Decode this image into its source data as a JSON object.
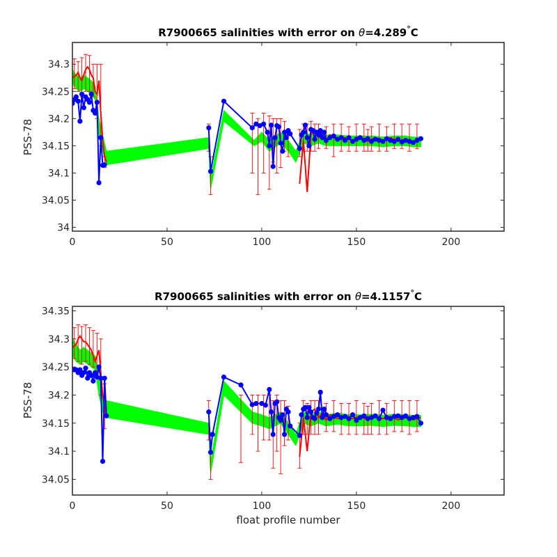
{
  "colors": {
    "background": "#ffffff",
    "axes": "#262626",
    "error_band": "#00ff00",
    "mapped_salinity": "#ff0000",
    "float_salinity": "#0000ff"
  },
  "chart_data": [
    {
      "type": "line",
      "title_prefix": "R7900665 salinities with error on ",
      "title_theta": "θ",
      "title_value": "=4.289",
      "title_degree": "°",
      "title_unit": "C",
      "xlabel": "",
      "ylabel": "PSS-78",
      "xlim": [
        0,
        228
      ],
      "ylim": [
        33.993,
        34.34
      ],
      "xticks": [
        0,
        50,
        100,
        150,
        200
      ],
      "yticks": [
        34,
        34.05,
        34.1,
        34.15,
        34.2,
        34.25,
        34.3
      ],
      "ytick_labels": [
        "34",
        "34.05",
        "34.1",
        "34.15",
        "34.2",
        "34.25",
        "34.3"
      ],
      "grid": false,
      "series": [
        {
          "role": "error-band",
          "color": "#00ff00",
          "x": [
            0,
            2,
            4,
            6,
            8,
            10,
            12,
            14,
            16,
            18,
            72,
            73,
            80,
            96,
            100,
            104,
            110,
            114,
            118,
            122,
            126,
            130,
            134,
            140,
            146,
            152,
            158,
            164,
            170,
            176,
            180,
            184
          ],
          "upper": [
            34.29,
            34.28,
            34.275,
            34.28,
            34.275,
            34.27,
            34.26,
            34.2,
            34.17,
            34.14,
            34.165,
            34.09,
            34.215,
            34.16,
            34.175,
            34.16,
            34.175,
            34.16,
            34.14,
            34.175,
            34.17,
            34.175,
            34.17,
            34.17,
            34.168,
            34.168,
            34.168,
            34.166,
            34.168,
            34.168,
            34.166,
            34.166
          ],
          "lower": [
            34.265,
            34.255,
            34.25,
            34.255,
            34.25,
            34.245,
            34.235,
            34.17,
            34.14,
            34.115,
            34.145,
            34.07,
            34.195,
            34.15,
            34.158,
            34.14,
            34.155,
            34.14,
            34.12,
            34.155,
            34.15,
            34.155,
            34.15,
            34.15,
            34.15,
            34.15,
            34.15,
            34.148,
            34.15,
            34.15,
            34.148,
            34.148
          ]
        },
        {
          "role": "mapped-salinity",
          "color": "#ff0000",
          "x": [
            0,
            2,
            3,
            4,
            5,
            6,
            7,
            8,
            9,
            10,
            11,
            12,
            13,
            14,
            15,
            16,
            17,
            18,
            120,
            122,
            124,
            126,
            128,
            130,
            132,
            134,
            136,
            140,
            144,
            148,
            152,
            156,
            160,
            164,
            168,
            172,
            176,
            180,
            184
          ],
          "values": [
            34.275,
            34.28,
            34.285,
            34.275,
            34.27,
            34.28,
            34.29,
            34.295,
            34.29,
            34.28,
            34.275,
            34.25,
            34.245,
            34.27,
            34.21,
            34.16,
            34.13,
            34.12,
            34.08,
            34.16,
            34.065,
            34.17,
            34.18,
            34.165,
            34.17,
            34.155,
            34.17,
            34.16,
            34.165,
            34.16,
            34.165,
            34.158,
            34.165,
            34.16,
            34.165,
            34.158,
            34.162,
            34.158,
            34.162
          ]
        },
        {
          "role": "float-salinity",
          "color": "#0000ff",
          "x": [
            0,
            1,
            2,
            3,
            4,
            5,
            6,
            7,
            8,
            9,
            10,
            11,
            12,
            13,
            14,
            15,
            16,
            17,
            72,
            73,
            80,
            95,
            97,
            99,
            101,
            103,
            104,
            105,
            106,
            107,
            108,
            109,
            110,
            111,
            112,
            113,
            114,
            115,
            120,
            121,
            122,
            123,
            124,
            125,
            126,
            127,
            128,
            129,
            130,
            131,
            132,
            133,
            134,
            136,
            138,
            140,
            142,
            144,
            146,
            148,
            150,
            152,
            154,
            156,
            158,
            160,
            162,
            164,
            166,
            168,
            170,
            172,
            174,
            176,
            178,
            180,
            182,
            184
          ],
          "values": [
            34.228,
            34.235,
            34.24,
            34.232,
            34.195,
            34.245,
            34.22,
            34.24,
            34.235,
            34.23,
            34.245,
            34.215,
            34.21,
            34.23,
            34.082,
            34.165,
            34.114,
            34.115,
            34.183,
            34.103,
            34.232,
            34.183,
            34.19,
            34.187,
            34.19,
            34.175,
            34.15,
            34.188,
            34.112,
            34.165,
            34.187,
            34.185,
            34.155,
            34.14,
            34.175,
            34.165,
            34.178,
            34.172,
            34.145,
            34.17,
            34.175,
            34.188,
            34.165,
            34.15,
            34.18,
            34.178,
            34.162,
            34.175,
            34.17,
            34.178,
            34.165,
            34.175,
            34.16,
            34.165,
            34.168,
            34.162,
            34.165,
            34.16,
            34.165,
            34.158,
            34.162,
            34.165,
            34.16,
            34.163,
            34.158,
            34.162,
            34.16,
            34.158,
            34.163,
            34.16,
            34.158,
            34.162,
            34.157,
            34.16,
            34.158,
            34.156,
            34.16,
            34.163
          ]
        },
        {
          "role": "error-bars",
          "color": "#ff0000",
          "x": [
            1,
            3,
            5,
            7,
            9,
            11,
            13,
            15,
            17,
            72,
            73,
            95,
            98,
            101,
            104,
            106,
            108,
            110,
            112,
            114,
            120,
            122,
            124,
            126,
            128,
            130,
            134,
            138,
            142,
            146,
            150,
            154,
            156,
            158,
            162,
            166,
            170,
            174,
            178,
            182
          ],
          "high": [
            34.31,
            34.305,
            34.312,
            34.318,
            34.316,
            34.3,
            34.3,
            34.3,
            34.13,
            34.19,
            34.13,
            34.21,
            34.2,
            34.21,
            34.205,
            34.2,
            34.2,
            34.2,
            34.195,
            34.18,
            34.18,
            34.19,
            34.19,
            34.195,
            34.19,
            34.19,
            34.185,
            34.19,
            34.19,
            34.185,
            34.19,
            34.19,
            34.18,
            34.185,
            34.19,
            34.185,
            34.19,
            34.19,
            34.19,
            34.19
          ],
          "low": [
            34.255,
            34.25,
            34.24,
            34.25,
            34.25,
            34.24,
            34.2,
            34.15,
            34.11,
            34.14,
            34.06,
            34.1,
            34.06,
            34.1,
            34.07,
            34.12,
            34.1,
            34.11,
            34.14,
            34.13,
            34.13,
            34.14,
            34.14,
            34.14,
            34.14,
            34.145,
            34.145,
            34.13,
            34.14,
            34.14,
            34.14,
            34.14,
            34.14,
            34.14,
            34.14,
            34.14,
            34.145,
            34.145,
            34.14,
            34.145
          ]
        }
      ]
    },
    {
      "type": "line",
      "title_prefix": "R7900665 salinities with error on ",
      "title_theta": "θ",
      "title_value": "=4.1157",
      "title_degree": "°",
      "title_unit": "C",
      "xlabel": "float profile number",
      "ylabel": "PSS-78",
      "xlim": [
        0,
        228
      ],
      "ylim": [
        34.022,
        34.358
      ],
      "xticks": [
        0,
        50,
        100,
        150,
        200
      ],
      "yticks": [
        34.05,
        34.1,
        34.15,
        34.2,
        34.25,
        34.3,
        34.35
      ],
      "ytick_labels": [
        "34.05",
        "34.1",
        "34.15",
        "34.2",
        "34.25",
        "34.3",
        "34.35"
      ],
      "grid": false,
      "series": [
        {
          "role": "error-band",
          "color": "#00ff00",
          "x": [
            0,
            2,
            4,
            6,
            8,
            10,
            12,
            14,
            16,
            18,
            72,
            73,
            80,
            95,
            100,
            104,
            110,
            114,
            118,
            122,
            126,
            130,
            134,
            140,
            146,
            152,
            158,
            164,
            170,
            176,
            180,
            184
          ],
          "upper": [
            34.3,
            34.29,
            34.28,
            34.285,
            34.28,
            34.275,
            34.27,
            34.23,
            34.2,
            34.19,
            34.15,
            34.08,
            34.225,
            34.17,
            34.165,
            34.16,
            34.17,
            34.15,
            34.13,
            34.17,
            34.165,
            34.17,
            34.165,
            34.168,
            34.165,
            34.165,
            34.166,
            34.164,
            34.166,
            34.165,
            34.164,
            34.164
          ],
          "lower": [
            34.27,
            34.26,
            34.255,
            34.26,
            34.255,
            34.25,
            34.245,
            34.2,
            34.17,
            34.16,
            34.13,
            34.06,
            34.2,
            34.15,
            34.145,
            34.14,
            34.15,
            34.13,
            34.11,
            34.15,
            34.145,
            34.15,
            34.145,
            34.148,
            34.145,
            34.145,
            34.146,
            34.144,
            34.146,
            34.145,
            34.144,
            34.144
          ]
        },
        {
          "role": "mapped-salinity",
          "color": "#ff0000",
          "x": [
            0,
            2,
            3,
            4,
            5,
            6,
            7,
            8,
            9,
            10,
            11,
            12,
            13,
            14,
            15,
            16,
            17,
            18,
            120,
            122,
            124,
            126,
            128,
            130,
            132,
            134,
            136,
            140,
            144,
            148,
            152,
            156,
            160,
            164,
            168,
            172,
            176,
            180,
            184
          ],
          "values": [
            34.285,
            34.29,
            34.3,
            34.305,
            34.3,
            34.295,
            34.295,
            34.29,
            34.285,
            34.28,
            34.27,
            34.26,
            34.27,
            34.28,
            34.24,
            34.2,
            34.18,
            34.16,
            34.09,
            34.16,
            34.1,
            34.17,
            34.175,
            34.16,
            34.168,
            34.155,
            34.165,
            34.158,
            34.163,
            34.158,
            34.162,
            34.156,
            34.162,
            34.158,
            34.162,
            34.156,
            34.16,
            34.156,
            34.16
          ]
        },
        {
          "role": "float-salinity",
          "color": "#0000ff",
          "x": [
            0,
            1,
            2,
            3,
            4,
            5,
            6,
            7,
            8,
            9,
            10,
            11,
            12,
            13,
            14,
            15,
            16,
            17,
            18,
            72,
            73,
            74,
            80,
            89,
            95,
            97,
            100,
            102,
            104,
            105,
            106,
            107,
            108,
            109,
            110,
            111,
            112,
            113,
            114,
            115,
            120,
            121,
            122,
            123,
            124,
            125,
            126,
            127,
            128,
            129,
            130,
            131,
            132,
            133,
            134,
            136,
            138,
            140,
            142,
            144,
            146,
            148,
            150,
            152,
            154,
            156,
            158,
            160,
            162,
            164,
            166,
            168,
            170,
            172,
            174,
            176,
            178,
            180,
            182,
            184
          ],
          "values": [
            34.245,
            34.245,
            34.245,
            34.24,
            34.245,
            34.235,
            34.24,
            34.248,
            34.23,
            34.24,
            34.235,
            34.225,
            34.24,
            34.232,
            34.25,
            34.23,
            34.082,
            34.23,
            34.163,
            34.17,
            34.098,
            34.13,
            34.232,
            34.218,
            34.183,
            34.185,
            34.185,
            34.182,
            34.21,
            34.17,
            34.13,
            34.185,
            34.188,
            34.16,
            34.155,
            34.165,
            34.13,
            34.175,
            34.17,
            34.145,
            34.128,
            34.165,
            34.175,
            34.178,
            34.16,
            34.178,
            34.17,
            34.16,
            34.158,
            34.168,
            34.175,
            34.205,
            34.16,
            34.175,
            34.165,
            34.158,
            34.162,
            34.165,
            34.16,
            34.162,
            34.158,
            34.165,
            34.155,
            34.16,
            34.163,
            34.158,
            34.16,
            34.163,
            34.158,
            34.173,
            34.16,
            34.158,
            34.162,
            34.163,
            34.16,
            34.163,
            34.158,
            34.16,
            34.162,
            34.15
          ]
        },
        {
          "role": "error-bars",
          "color": "#ff0000",
          "x": [
            1,
            3,
            5,
            7,
            9,
            11,
            13,
            15,
            17,
            72,
            73,
            89,
            95,
            98,
            101,
            104,
            106,
            108,
            110,
            112,
            114,
            120,
            122,
            124,
            126,
            128,
            130,
            134,
            138,
            142,
            146,
            150,
            154,
            156,
            158,
            162,
            166,
            170,
            174,
            178,
            182
          ],
          "high": [
            34.32,
            34.325,
            34.322,
            34.325,
            34.32,
            34.315,
            34.31,
            34.3,
            34.22,
            34.19,
            34.12,
            34.2,
            34.2,
            34.2,
            34.2,
            34.2,
            34.19,
            34.2,
            34.19,
            34.19,
            34.18,
            34.15,
            34.19,
            34.185,
            34.19,
            34.19,
            34.19,
            34.185,
            34.19,
            34.185,
            34.185,
            34.19,
            34.185,
            34.18,
            34.185,
            34.19,
            34.185,
            34.19,
            34.19,
            34.19,
            34.19
          ],
          "low": [
            34.265,
            34.26,
            34.255,
            34.26,
            34.255,
            34.25,
            34.24,
            34.2,
            34.14,
            34.12,
            34.05,
            34.08,
            34.13,
            34.1,
            34.12,
            34.12,
            34.07,
            34.1,
            34.06,
            34.11,
            34.12,
            34.07,
            34.13,
            34.13,
            34.13,
            34.13,
            34.13,
            34.135,
            34.135,
            34.13,
            34.13,
            34.13,
            34.13,
            34.13,
            34.13,
            34.13,
            34.13,
            34.135,
            34.135,
            34.13,
            34.135
          ]
        }
      ]
    }
  ]
}
